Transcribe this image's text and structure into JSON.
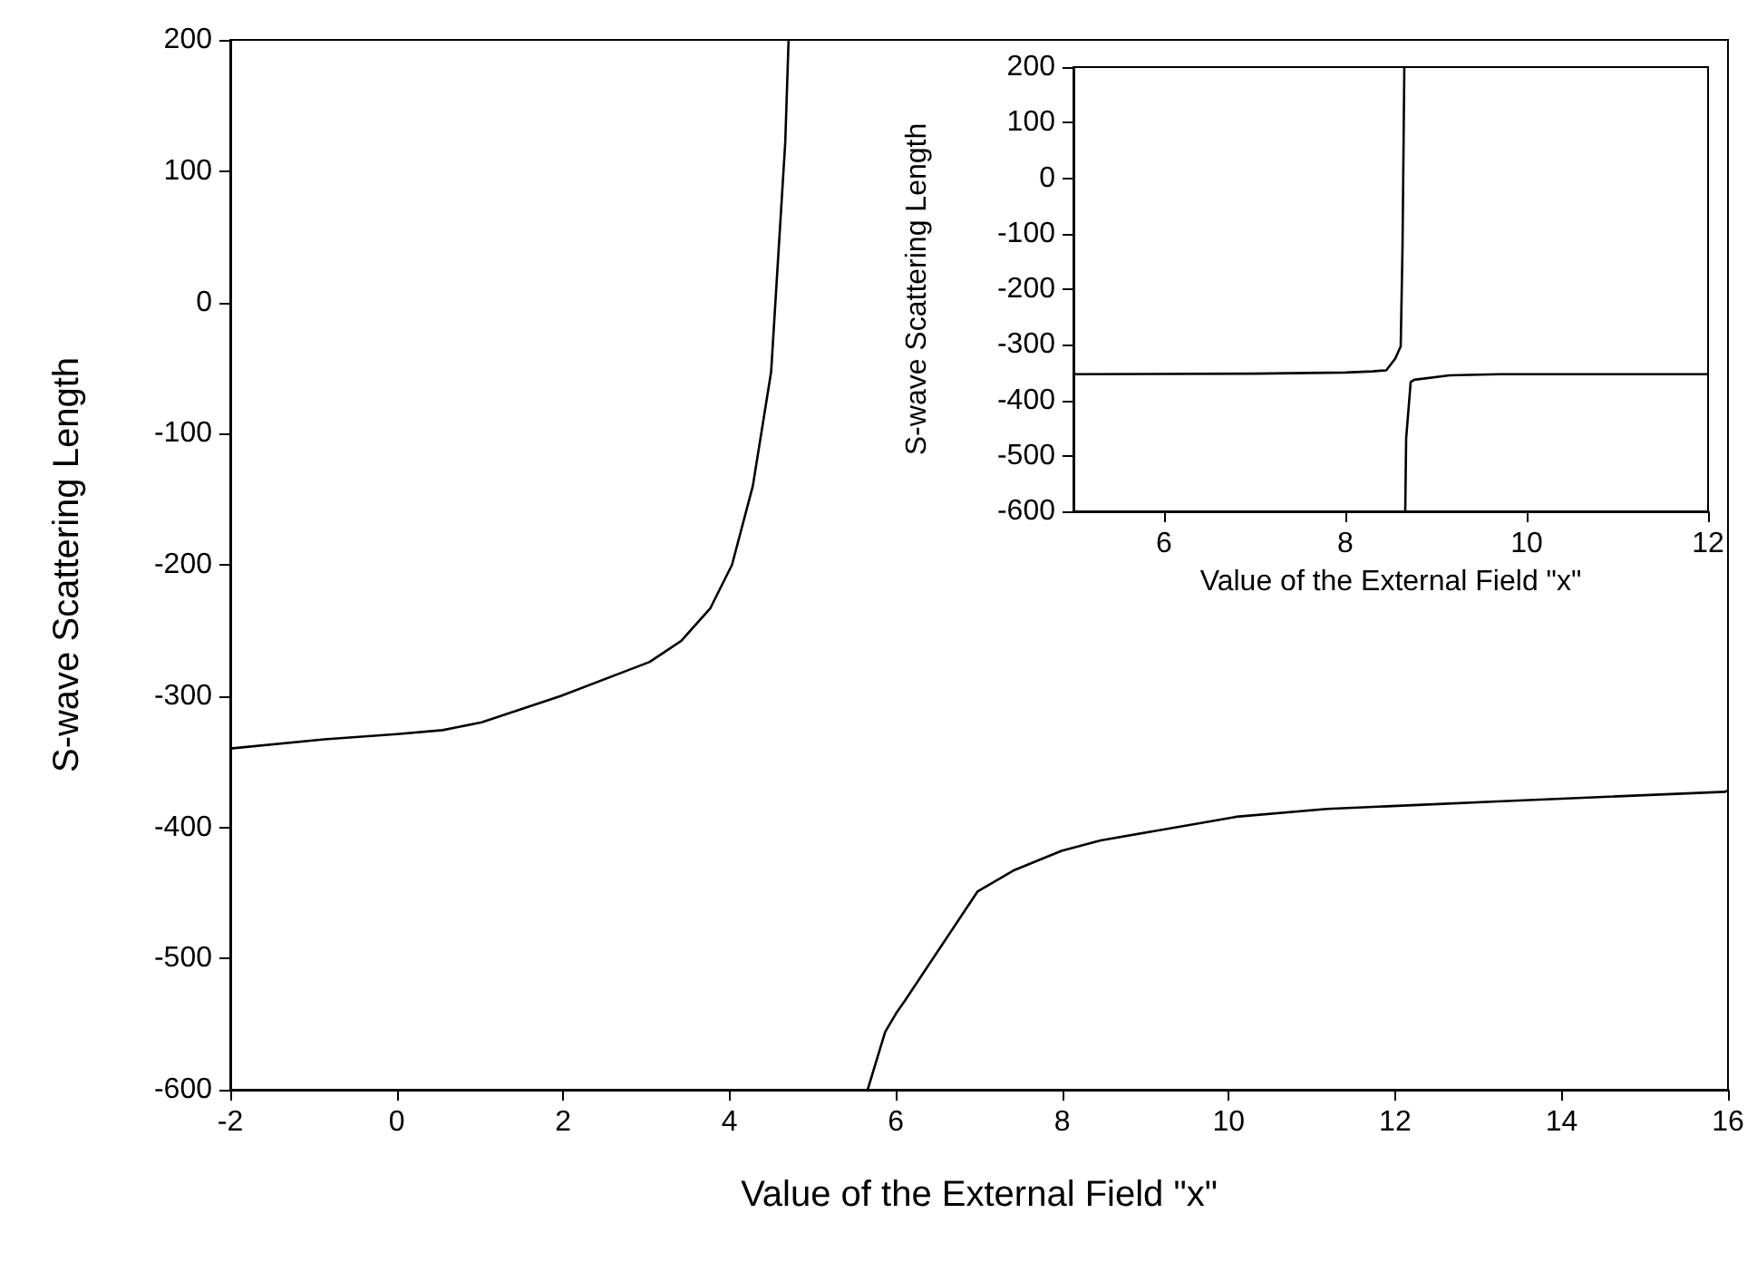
{
  "chart_data": [
    {
      "type": "line",
      "xlabel": "Value of the External Field \"x\"",
      "ylabel": "S-wave Scattering Length",
      "xlim": [
        -2,
        16
      ],
      "xticks": [
        -2,
        0,
        2,
        4,
        6,
        8,
        10,
        12,
        14,
        16
      ],
      "ylim": [
        -600,
        200
      ],
      "yticks": [
        -600,
        -500,
        -400,
        -300,
        -200,
        -100,
        0,
        100,
        200
      ],
      "grid": false,
      "marker": "none",
      "line_style": "solid",
      "series": [
        {
          "color": "#000000",
          "x": [
            -2,
            -0.87,
            0,
            0.55,
            1.02,
            1.97,
            3.04,
            3.42,
            3.77,
            4.03,
            4.28,
            4.5,
            4.67,
            4.71
          ],
          "values": [
            -340,
            -333,
            -329,
            -326,
            -320,
            -300,
            -274,
            -258,
            -233,
            -200,
            -140,
            -53,
            122,
            200
          ]
        },
        {
          "color": "#000000",
          "x": [
            5.66,
            5.87,
            6.0,
            6.11,
            6.98,
            7.41,
            7.99,
            8.46,
            9.37,
            10.09,
            11.18,
            12.27,
            13.35,
            14.44,
            15.96,
            16
          ],
          "values": [
            -600,
            -556,
            -542,
            -532,
            -449,
            -433,
            -418,
            -410,
            -400,
            -392,
            -386,
            -383,
            -380,
            -377,
            -373,
            -372
          ]
        }
      ]
    },
    {
      "type": "line",
      "xlabel": "Value of the External Field \"x\"",
      "ylabel": "S-wave Scattering Length",
      "xlim": [
        5,
        12
      ],
      "xticks": [
        6,
        8,
        10,
        12
      ],
      "ylim": [
        -600,
        200
      ],
      "yticks": [
        -600,
        -500,
        -400,
        -300,
        -200,
        -100,
        0,
        100,
        200
      ],
      "grid": false,
      "marker": "none",
      "line_style": "solid",
      "series": [
        {
          "color": "#000000",
          "x": [
            5,
            7,
            8,
            8.3,
            8.45,
            8.55,
            8.61,
            8.63,
            8.65
          ],
          "values": [
            -353,
            -352,
            -350,
            -348,
            -346,
            -325,
            -303,
            -125,
            200
          ]
        },
        {
          "color": "#000000",
          "x": [
            8.66,
            8.67,
            8.72,
            8.76,
            9.15,
            9.7,
            12
          ],
          "values": [
            -600,
            -469,
            -367,
            -363,
            -355,
            -353,
            -353
          ]
        }
      ]
    }
  ]
}
